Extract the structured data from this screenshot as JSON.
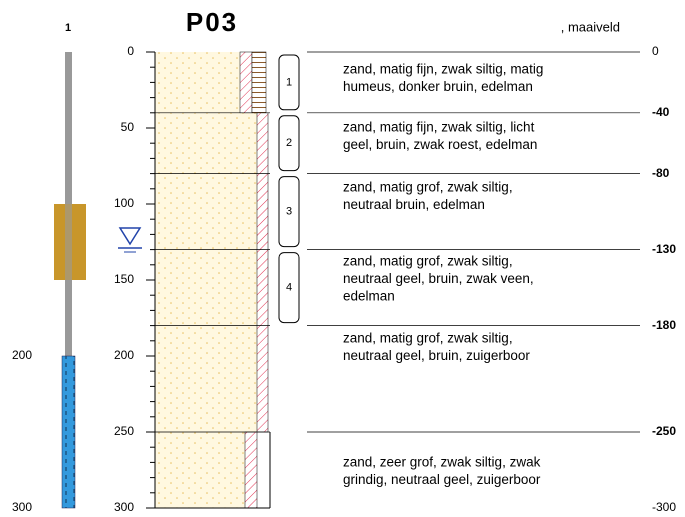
{
  "title": "P03",
  "reference": ", maaiveld",
  "well": {
    "id": "1",
    "labels": [
      200,
      300
    ]
  },
  "scale": [
    0,
    50,
    100,
    150,
    200,
    250,
    300
  ],
  "boundaries": [
    {
      "value": 0,
      "label": "0"
    },
    {
      "value": 40,
      "label": "-40"
    },
    {
      "value": 80,
      "label": "-80"
    },
    {
      "value": 130,
      "label": "-130"
    },
    {
      "value": 180,
      "label": "-180"
    },
    {
      "value": 250,
      "label": "-250"
    },
    {
      "value": 300,
      "label": "-300"
    }
  ],
  "layers": [
    {
      "number": "1",
      "description": [
        "zand, matig fijn, zwak siltig, matig",
        "humeus, donker bruin, edelman"
      ]
    },
    {
      "number": "2",
      "description": [
        "zand, matig fijn, zwak siltig, licht",
        "geel, bruin, zwak roest, edelman"
      ]
    },
    {
      "number": "3",
      "description": [
        "zand, matig grof, zwak siltig,",
        "neutraal bruin, edelman"
      ]
    },
    {
      "number": "4",
      "description": [
        "zand, matig grof, zwak siltig,",
        "neutraal geel, bruin, zwak veen,",
        "edelman"
      ]
    },
    {
      "description": [
        "zand, matig grof, zwak siltig,",
        "neutraal geel, bruin, zuigerboor"
      ]
    },
    {
      "description": [
        "zand, zeer grof, zwak siltig, zwak",
        "grindig, neutraal geel, zuigerboor"
      ]
    }
  ]
}
